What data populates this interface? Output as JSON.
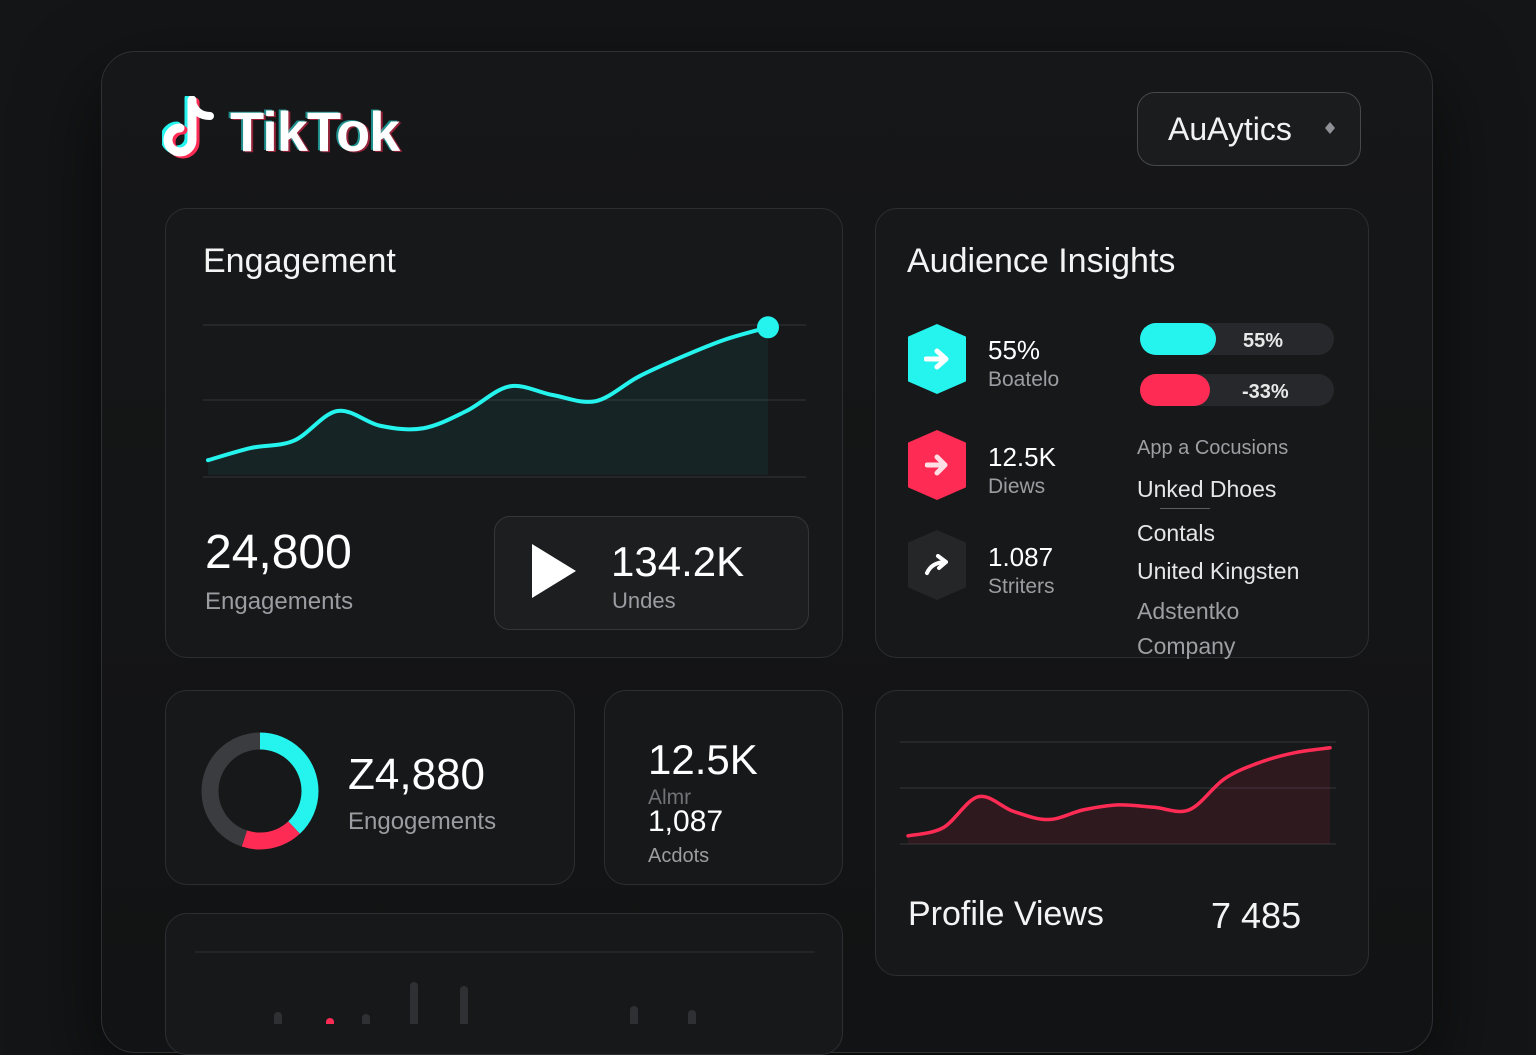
{
  "app": {
    "title": "TikTok"
  },
  "dropdown": {
    "label": "AuAytics"
  },
  "colors": {
    "cyan": "#25f4ee",
    "pink": "#fe2c55",
    "bg": "#141516"
  },
  "engagement": {
    "title": "Engagement",
    "total_value": "24,800",
    "total_label": "Engagements",
    "play_value": "134.2K",
    "play_label": "Undes"
  },
  "audience": {
    "title": "Audience Insights",
    "stats": [
      {
        "value": "55%",
        "label": "Boatelo",
        "icon": "arrow-right-icon",
        "color": "#25f4ee"
      },
      {
        "value": "12.5K",
        "label": "Diews",
        "icon": "arrow-right-icon",
        "color": "#fe2c55"
      },
      {
        "value": "1.087",
        "label": "Striters",
        "icon": "arrow-up-right-icon",
        "color": "#242628"
      }
    ],
    "bars": [
      {
        "label": "55%",
        "fraction": 0.39,
        "color": "#25f4ee"
      },
      {
        "label": "-33%",
        "fraction": 0.36,
        "color": "#fe2c55"
      }
    ],
    "locations": [
      "App a Cocusions",
      "Unked Dhoes",
      "Contals",
      "United Kingsten",
      "Adstentko",
      "Company"
    ]
  },
  "donut": {
    "value": "Z4,880",
    "label": "Engogements",
    "segments": [
      {
        "name": "cyan",
        "fraction": 0.38,
        "color": "#25f4ee"
      },
      {
        "name": "pink",
        "fraction": 0.17,
        "color": "#fe2c55"
      },
      {
        "name": "gray",
        "fraction": 0.45,
        "color": "#3a3c3f"
      }
    ]
  },
  "mini_stats": {
    "value1": "12.5K",
    "label1": "Almr",
    "value2": "1,087",
    "label2": "Acdots"
  },
  "profile": {
    "title": "Profile Views",
    "value": "7 485"
  },
  "chart_data": [
    {
      "type": "line",
      "title": "Engagement",
      "x": [
        0,
        1,
        2,
        3,
        4,
        5,
        6,
        7,
        8,
        9,
        10,
        11,
        12,
        13
      ],
      "series": [
        {
          "name": "Engagement",
          "values": [
            12,
            22,
            28,
            52,
            40,
            38,
            52,
            72,
            65,
            60,
            80,
            96,
            110,
            120
          ]
        }
      ],
      "ylim": [
        0,
        130
      ],
      "xlabel": "",
      "ylabel": ""
    },
    {
      "type": "line",
      "title": "Profile Views",
      "x": [
        0,
        1,
        2,
        3,
        4,
        5,
        6,
        7,
        8,
        9,
        10,
        11,
        12
      ],
      "series": [
        {
          "name": "Profile Views",
          "values": [
            10,
            20,
            58,
            40,
            30,
            42,
            48,
            45,
            42,
            80,
            100,
            112,
            118
          ]
        }
      ],
      "ylim": [
        0,
        130
      ],
      "xlabel": "",
      "ylabel": ""
    }
  ]
}
